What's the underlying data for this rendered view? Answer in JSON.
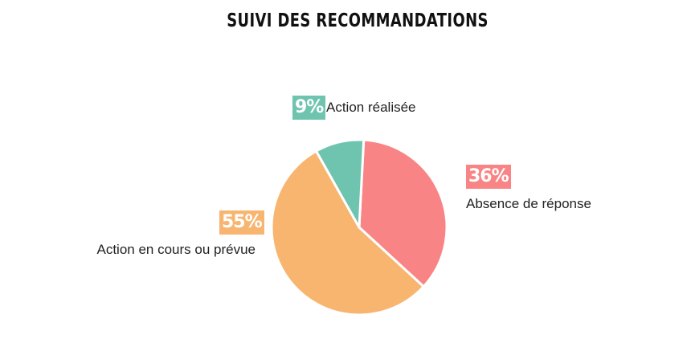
{
  "chart_data": {
    "type": "pie",
    "title": "SUIVI DES RECOMMANDATIONS",
    "slices": [
      {
        "label": "Action réalisée",
        "value": 9,
        "value_label": "9%",
        "color": "#6fc4b0"
      },
      {
        "label": "Absence de réponse",
        "value": 36,
        "value_label": "36%",
        "color": "#f98485"
      },
      {
        "label": "Action en cours ou prévue",
        "value": 55,
        "value_label": "55%",
        "color": "#f8b570"
      }
    ]
  }
}
